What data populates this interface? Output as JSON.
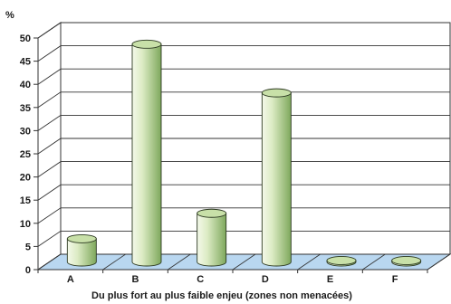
{
  "chart_data": {
    "type": "bar",
    "categories": [
      "A",
      "B",
      "C",
      "D",
      "E",
      "F"
    ],
    "values": [
      5,
      47,
      10.5,
      36.5,
      0.3,
      0.3
    ],
    "title": "",
    "xlabel": "Du plus fort au plus faible enjeu (zones non menacées)",
    "ylabel": "%",
    "ylim": [
      0,
      50
    ],
    "yticks": [
      "0",
      "5",
      "10",
      "15",
      "20",
      "25",
      "30",
      "35",
      "40",
      "45",
      "50"
    ],
    "grid": true,
    "legend": "none",
    "colors": {
      "bar_light": "#e8f2d8",
      "bar_dark": "#7ea85c",
      "bar_top": "#c8e0a8",
      "floor": "#b9d7f0",
      "grid": "#333333"
    }
  }
}
